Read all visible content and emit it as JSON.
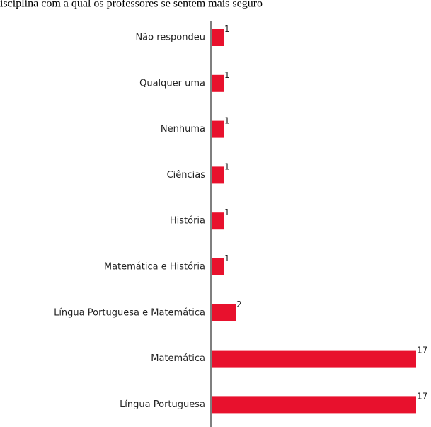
{
  "chart_data": {
    "type": "hbar",
    "title": "isciplina com a qual os professores se sentem mais seguro",
    "categories": [
      "Não respondeu",
      "Qualquer uma",
      "Nenhuma",
      "Ciências",
      "História",
      "Matemática e História",
      "Língua Portuguesa e Matemática",
      "Matemática",
      "Língua Portuguesa"
    ],
    "values": [
      1,
      1,
      1,
      1,
      1,
      1,
      2,
      17,
      17
    ],
    "color": "#e8112d",
    "xlim": [
      0,
      17
    ]
  }
}
